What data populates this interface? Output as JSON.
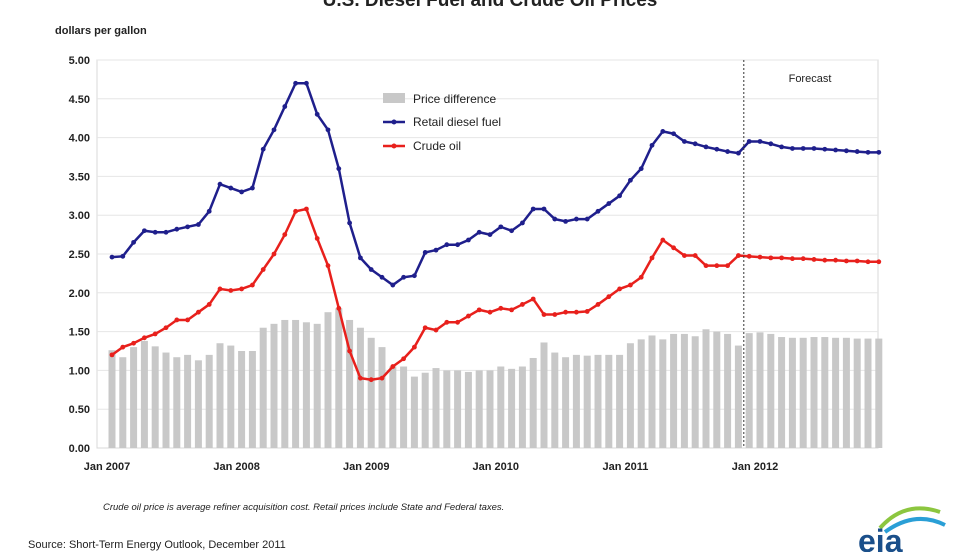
{
  "chart_data": {
    "type": "line",
    "title": "U.S. Diesel Fuel and Crude Oil Prices",
    "ylabel": "dollars per gallon",
    "ylim": [
      0,
      5
    ],
    "yticks": [
      "0.00",
      "0.50",
      "1.00",
      "1.50",
      "2.00",
      "2.50",
      "3.00",
      "3.50",
      "4.00",
      "4.50",
      "5.00"
    ],
    "xtick_labels": [
      "Jan 2007",
      "Jan 2008",
      "Jan 2009",
      "Jan 2010",
      "Jan 2011",
      "Jan 2012"
    ],
    "x_start": "2007-01",
    "x_end": "2012-12",
    "frequency": "monthly",
    "grid": true,
    "legend": "top-center",
    "forecast_start": "2011-12",
    "forecast_label": "Forecast",
    "series": [
      {
        "name": "Price difference",
        "kind": "bar",
        "color": "#c8c8c8",
        "values": [
          1.26,
          1.17,
          1.3,
          1.38,
          1.31,
          1.23,
          1.17,
          1.2,
          1.13,
          1.2,
          1.35,
          1.32,
          1.25,
          1.25,
          1.55,
          1.6,
          1.65,
          1.65,
          1.62,
          1.6,
          1.75,
          1.8,
          1.65,
          1.55,
          1.42,
          1.3,
          1.05,
          1.05,
          0.92,
          0.97,
          1.03,
          1.0,
          1.0,
          0.98,
          1.0,
          1.0,
          1.05,
          1.02,
          1.05,
          1.16,
          1.36,
          1.23,
          1.17,
          1.2,
          1.19,
          1.2,
          1.2,
          1.2,
          1.35,
          1.4,
          1.45,
          1.4,
          1.47,
          1.47,
          1.44,
          1.53,
          1.5,
          1.47,
          1.32,
          1.48,
          1.49,
          1.47,
          1.43,
          1.42,
          1.42,
          1.43,
          1.43,
          1.42,
          1.42,
          1.41,
          1.41,
          1.41
        ]
      },
      {
        "name": "Retail diesel fuel",
        "kind": "line",
        "color": "#1f1f8c",
        "values": [
          2.46,
          2.47,
          2.65,
          2.8,
          2.78,
          2.78,
          2.82,
          2.85,
          2.88,
          3.05,
          3.4,
          3.35,
          3.3,
          3.35,
          3.85,
          4.1,
          4.4,
          4.7,
          4.7,
          4.3,
          4.1,
          3.6,
          2.9,
          2.45,
          2.3,
          2.2,
          2.1,
          2.2,
          2.22,
          2.52,
          2.55,
          2.62,
          2.62,
          2.68,
          2.78,
          2.75,
          2.85,
          2.8,
          2.9,
          3.08,
          3.08,
          2.95,
          2.92,
          2.95,
          2.95,
          3.05,
          3.15,
          3.25,
          3.45,
          3.6,
          3.9,
          4.08,
          4.05,
          3.95,
          3.92,
          3.88,
          3.85,
          3.82,
          3.8,
          3.95,
          3.95,
          3.92,
          3.88,
          3.86,
          3.86,
          3.86,
          3.85,
          3.84,
          3.83,
          3.82,
          3.81,
          3.81
        ]
      },
      {
        "name": "Crude oil",
        "kind": "line",
        "color": "#e8201c",
        "values": [
          1.2,
          1.3,
          1.35,
          1.42,
          1.47,
          1.55,
          1.65,
          1.65,
          1.75,
          1.85,
          2.05,
          2.03,
          2.05,
          2.1,
          2.3,
          2.5,
          2.75,
          3.05,
          3.08,
          2.7,
          2.35,
          1.8,
          1.25,
          0.9,
          0.88,
          0.9,
          1.05,
          1.15,
          1.3,
          1.55,
          1.52,
          1.62,
          1.62,
          1.7,
          1.78,
          1.75,
          1.8,
          1.78,
          1.85,
          1.92,
          1.72,
          1.72,
          1.75,
          1.75,
          1.76,
          1.85,
          1.95,
          2.05,
          2.1,
          2.2,
          2.45,
          2.68,
          2.58,
          2.48,
          2.48,
          2.35,
          2.35,
          2.35,
          2.48,
          2.47,
          2.46,
          2.45,
          2.45,
          2.44,
          2.44,
          2.43,
          2.42,
          2.42,
          2.41,
          2.41,
          2.4,
          2.4
        ]
      }
    ],
    "note": "Crude oil price is average refiner acquisition cost. Retail prices include State and Federal taxes.",
    "source": "Source: Short-Term Energy Outlook, December 2011",
    "logo": "eia"
  }
}
